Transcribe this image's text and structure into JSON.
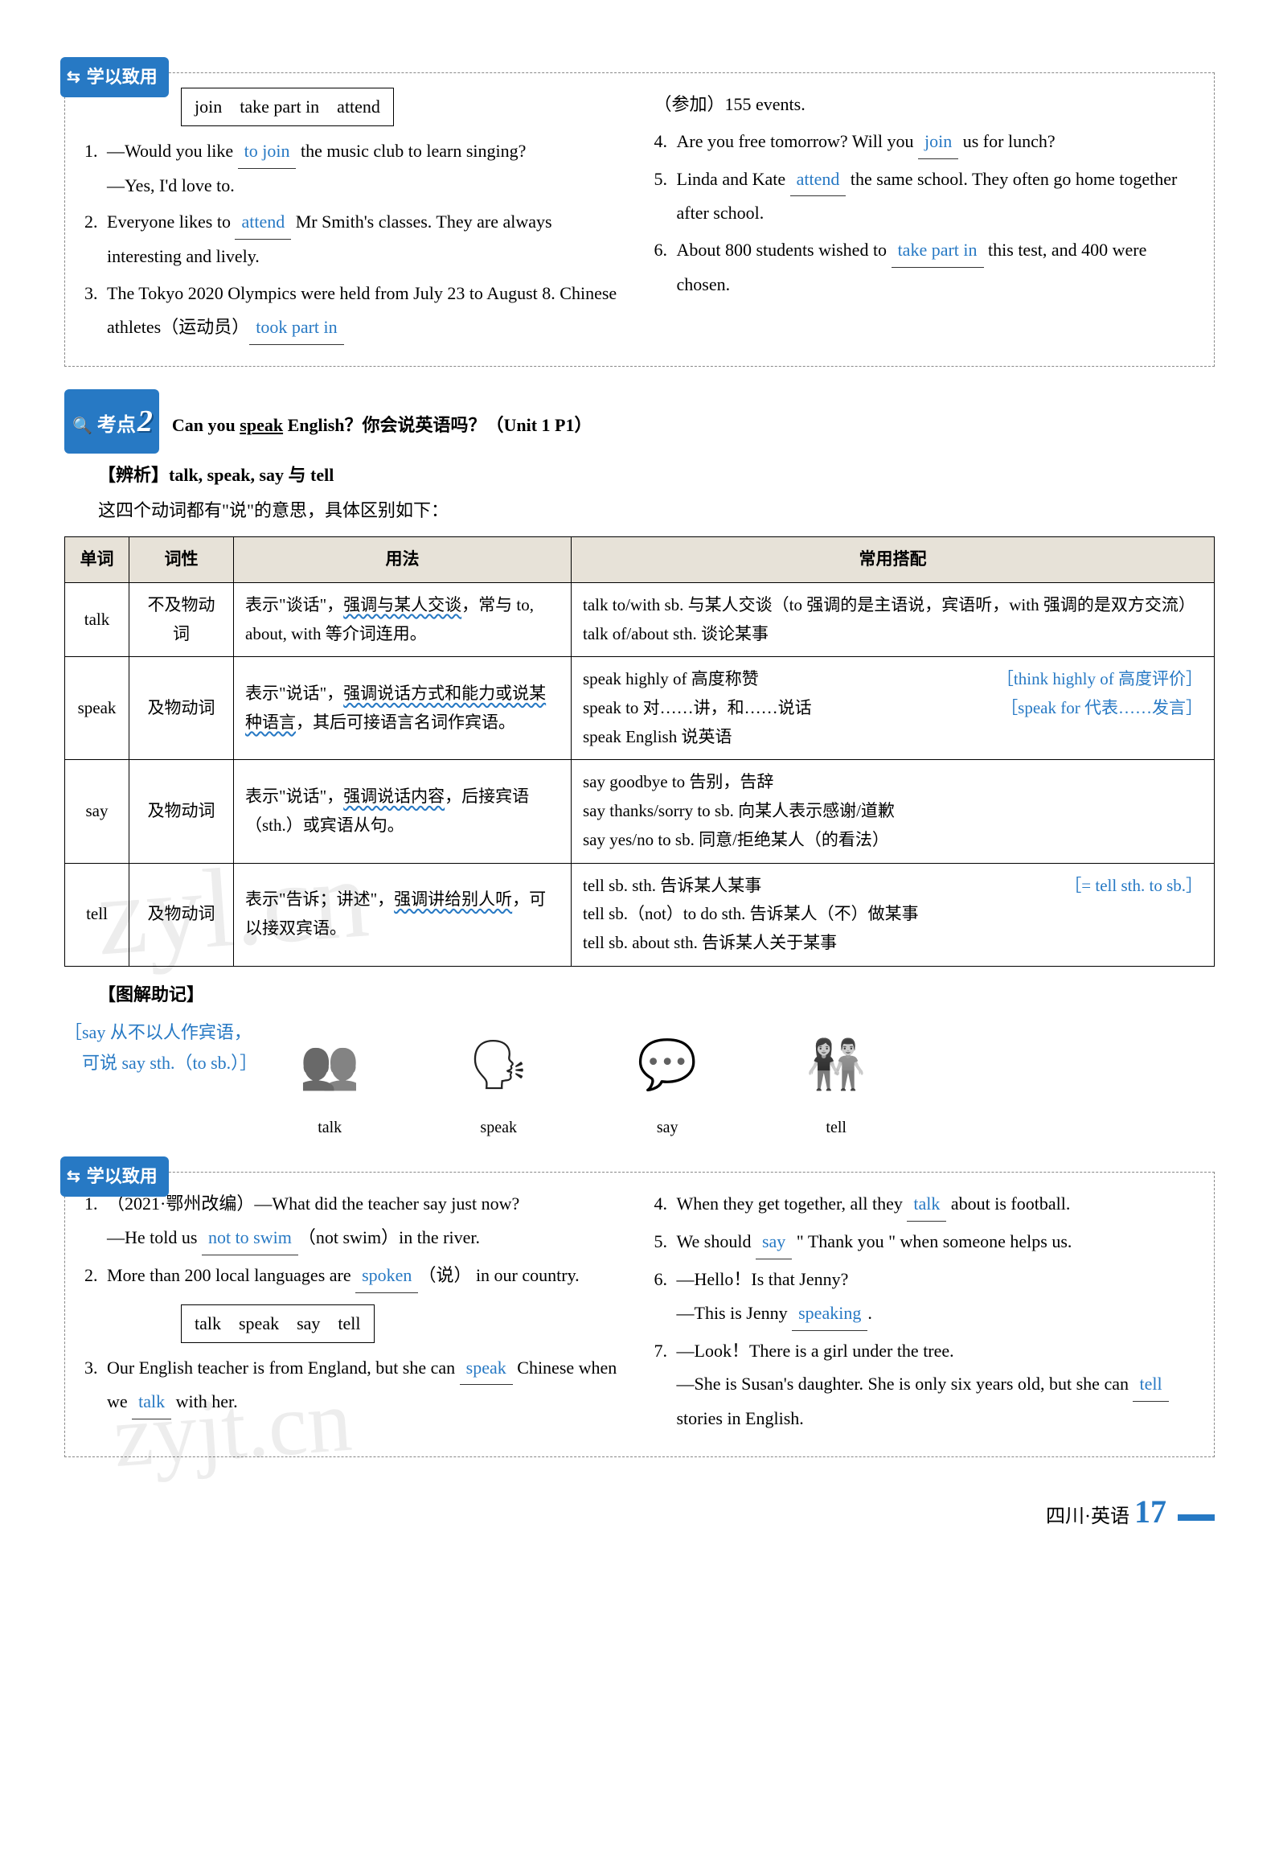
{
  "colors": {
    "accent": "#2779c4",
    "header_bg": "#e7e2d8",
    "text": "#000000"
  },
  "exercise1": {
    "header": "学以致用",
    "word_box": "join　take part in　attend",
    "left": [
      {
        "n": "1.",
        "text_a": "—Would you like ",
        "blank": "to join",
        "text_b": " the music club to learn singing?",
        "line2": "—Yes, I'd love to."
      },
      {
        "n": "2.",
        "text_a": "Everyone likes to ",
        "blank": "attend",
        "text_b": " Mr Smith's classes. They are always interesting and lively."
      },
      {
        "n": "3.",
        "text_a": "The Tokyo 2020 Olympics were held from July 23 to August 8. Chinese athletes（运动员）",
        "blank": "took part in",
        "text_b": ""
      }
    ],
    "right_start": "（参加）155 events.",
    "right": [
      {
        "n": "4.",
        "text_a": "Are you free tomorrow? Will you ",
        "blank": "join",
        "text_b": " us for lunch?"
      },
      {
        "n": "5.",
        "text_a": "Linda and Kate ",
        "blank": "attend",
        "text_b": " the same school. They often go home together after school."
      },
      {
        "n": "6.",
        "text_a": "About 800 students wished to ",
        "blank": "take part in",
        "text_b": " this test, and 400 were chosen."
      }
    ]
  },
  "kaodian": {
    "badge": "考点",
    "num": "2",
    "title_a": "Can you ",
    "title_u": "speak",
    "title_b": " English？你会说英语吗？（Unit 1 P1）",
    "analysis": "【辨析】talk, speak, say 与 tell",
    "intro": "这四个动词都有\"说\"的意思，具体区别如下："
  },
  "table": {
    "headers": [
      "单词",
      "词性",
      "用法",
      "常用搭配"
    ],
    "rows": [
      {
        "word": "talk",
        "pos": "不及物动词",
        "usage_a": "表示\"谈话\"，",
        "usage_wavy": "强调与某人交谈",
        "usage_b": "，常与 to, about, with 等介词连用。",
        "coll": "talk to/with sb. 与某人交谈（to 强调的是主语说，宾语听，with 强调的是双方交流）\ntalk of/about sth. 谈论某事",
        "note": ""
      },
      {
        "word": "speak",
        "pos": "及物动词",
        "usage_a": "表示\"说话\"，",
        "usage_wavy": "强调说话方式和能力或说某种语言",
        "usage_b": "，其后可接语言名词作宾语。",
        "coll_lines": [
          {
            "t": "speak highly of 高度称赞",
            "note": "［think highly of 高度评价］"
          },
          {
            "t": "speak to 对……讲，和……说话",
            "note": "［speak for 代表……发言］"
          },
          {
            "t": "speak English 说英语",
            "note": ""
          }
        ]
      },
      {
        "word": "say",
        "pos": "及物动词",
        "usage_a": "表示\"说话\"，",
        "usage_wavy": "强调说话内容",
        "usage_b": "，后接宾语（sth.）或宾语从句。",
        "coll": "say goodbye to 告别，告辞\nsay thanks/sorry to sb. 向某人表示感谢/道歉\nsay yes/no to sb. 同意/拒绝某人（的看法）",
        "note": ""
      },
      {
        "word": "tell",
        "pos": "及物动词",
        "usage_a": "表示\"告诉；讲述\"，",
        "usage_wavy": "强调讲给别人听",
        "usage_b": "，可以接双宾语。",
        "coll_lines": [
          {
            "t": "tell sb. sth. 告诉某人某事",
            "note": "［= tell sth. to sb.］"
          },
          {
            "t": "tell sb.（not）to do sth. 告诉某人（不）做某事",
            "note": ""
          },
          {
            "t": "tell sb. about sth. 告诉某人关于某事",
            "note": ""
          }
        ]
      }
    ]
  },
  "diagram": {
    "label": "【图解助记】",
    "note": "［say 从不以人作宾语，\n　可说 say sth.（to sb.）］",
    "items": [
      {
        "caption": "talk",
        "icon": "👥"
      },
      {
        "caption": "speak",
        "icon": "🗣"
      },
      {
        "caption": "say",
        "icon": "💬"
      },
      {
        "caption": "tell",
        "icon": "👫"
      }
    ]
  },
  "exercise2": {
    "header": "学以致用",
    "left": [
      {
        "n": "1.",
        "text_a": "（2021·鄂州改编）—What did the teacher say just now?",
        "line2_a": "—He told us ",
        "blank": "not to swim",
        "line2_b": "（not swim）in the river."
      },
      {
        "n": "2.",
        "text_a": "More than 200 local languages are ",
        "blank": "spoken",
        "text_b": "（说） in our country."
      }
    ],
    "word_box": "talk　speak　say　tell",
    "left2": [
      {
        "n": "3.",
        "text_a": "Our English teacher is from England, but she can ",
        "blank1": "speak",
        "mid": " Chinese when we ",
        "blank2": "talk",
        "text_b": " with her."
      }
    ],
    "right": [
      {
        "n": "4.",
        "text_a": "When they get together, all they ",
        "blank": "talk",
        "text_b": " about is football."
      },
      {
        "n": "5.",
        "text_a": "We should ",
        "blank": "say",
        "text_b": " \" Thank you \" when someone helps us."
      },
      {
        "n": "6.",
        "text_a": "—Hello！Is that Jenny?",
        "line2_a": "—This is Jenny ",
        "blank": "speaking",
        "line2_b": "."
      },
      {
        "n": "7.",
        "text_a": "—Look！There is a girl under the tree.",
        "line2_a": "—She is Susan's daughter. She is only six years old, but she can ",
        "blank": "tell",
        "line2_b": " stories in English."
      }
    ]
  },
  "footer": {
    "text": "四川·英语",
    "page": "17"
  }
}
